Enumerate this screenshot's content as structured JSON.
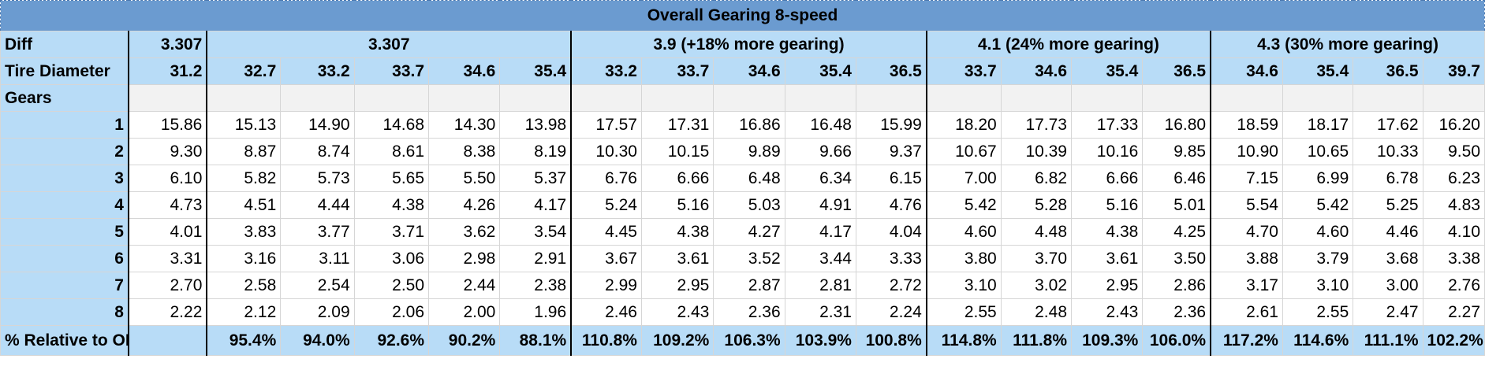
{
  "title": "Overall Gearing 8-speed",
  "labels": {
    "diff": "Diff",
    "tire_diameter": "Tire Diameter",
    "gears": "Gears",
    "pct_relative": "% Relative to OEM"
  },
  "diff_groups": [
    {
      "label": "3.307",
      "span": 1
    },
    {
      "label": "3.307",
      "span": 5
    },
    {
      "label": "3.9 (+18% more gearing)",
      "span": 5
    },
    {
      "label": "4.1 (24% more gearing)",
      "span": 4
    },
    {
      "label": "4.3 (30% more gearing)",
      "span": 4
    }
  ],
  "tire_diameters": [
    "31.2",
    "32.7",
    "33.2",
    "33.7",
    "34.6",
    "35.4",
    "33.2",
    "33.7",
    "34.6",
    "35.4",
    "36.5",
    "33.7",
    "34.6",
    "35.4",
    "36.5",
    "34.6",
    "35.4",
    "36.5",
    "39.7"
  ],
  "gears": [
    {
      "gear": "1",
      "values": [
        "15.86",
        "15.13",
        "14.90",
        "14.68",
        "14.30",
        "13.98",
        "17.57",
        "17.31",
        "16.86",
        "16.48",
        "15.99",
        "18.20",
        "17.73",
        "17.33",
        "16.80",
        "18.59",
        "18.17",
        "17.62",
        "16.20"
      ]
    },
    {
      "gear": "2",
      "values": [
        "9.30",
        "8.87",
        "8.74",
        "8.61",
        "8.38",
        "8.19",
        "10.30",
        "10.15",
        "9.89",
        "9.66",
        "9.37",
        "10.67",
        "10.39",
        "10.16",
        "9.85",
        "10.90",
        "10.65",
        "10.33",
        "9.50"
      ]
    },
    {
      "gear": "3",
      "values": [
        "6.10",
        "5.82",
        "5.73",
        "5.65",
        "5.50",
        "5.37",
        "6.76",
        "6.66",
        "6.48",
        "6.34",
        "6.15",
        "7.00",
        "6.82",
        "6.66",
        "6.46",
        "7.15",
        "6.99",
        "6.78",
        "6.23"
      ]
    },
    {
      "gear": "4",
      "values": [
        "4.73",
        "4.51",
        "4.44",
        "4.38",
        "4.26",
        "4.17",
        "5.24",
        "5.16",
        "5.03",
        "4.91",
        "4.76",
        "5.42",
        "5.28",
        "5.16",
        "5.01",
        "5.54",
        "5.42",
        "5.25",
        "4.83"
      ]
    },
    {
      "gear": "5",
      "values": [
        "4.01",
        "3.83",
        "3.77",
        "3.71",
        "3.62",
        "3.54",
        "4.45",
        "4.38",
        "4.27",
        "4.17",
        "4.04",
        "4.60",
        "4.48",
        "4.38",
        "4.25",
        "4.70",
        "4.60",
        "4.46",
        "4.10"
      ]
    },
    {
      "gear": "6",
      "values": [
        "3.31",
        "3.16",
        "3.11",
        "3.06",
        "2.98",
        "2.91",
        "3.67",
        "3.61",
        "3.52",
        "3.44",
        "3.33",
        "3.80",
        "3.70",
        "3.61",
        "3.50",
        "3.88",
        "3.79",
        "3.68",
        "3.38"
      ]
    },
    {
      "gear": "7",
      "values": [
        "2.70",
        "2.58",
        "2.54",
        "2.50",
        "2.44",
        "2.38",
        "2.99",
        "2.95",
        "2.87",
        "2.81",
        "2.72",
        "3.10",
        "3.02",
        "2.95",
        "2.86",
        "3.17",
        "3.10",
        "3.00",
        "2.76"
      ]
    },
    {
      "gear": "8",
      "values": [
        "2.22",
        "2.12",
        "2.09",
        "2.06",
        "2.00",
        "1.96",
        "2.46",
        "2.43",
        "2.36",
        "2.31",
        "2.24",
        "2.55",
        "2.48",
        "2.43",
        "2.36",
        "2.61",
        "2.55",
        "2.47",
        "2.27"
      ]
    }
  ],
  "pct_relative": [
    "95.4%",
    "94.0%",
    "92.6%",
    "90.2%",
    "88.1%",
    "110.8%",
    "109.2%",
    "106.3%",
    "103.9%",
    "100.8%",
    "114.8%",
    "111.8%",
    "109.3%",
    "106.0%",
    "117.2%",
    "114.6%",
    "111.1%",
    "102.2%"
  ],
  "colors": {
    "title_bg": "#6b9bd0",
    "header_bg": "#b8dcf7",
    "blank_bg": "#f2f2f2",
    "cell_bg": "#ffffff",
    "grid": "#d6d6d6",
    "group_separator": "#000000"
  }
}
